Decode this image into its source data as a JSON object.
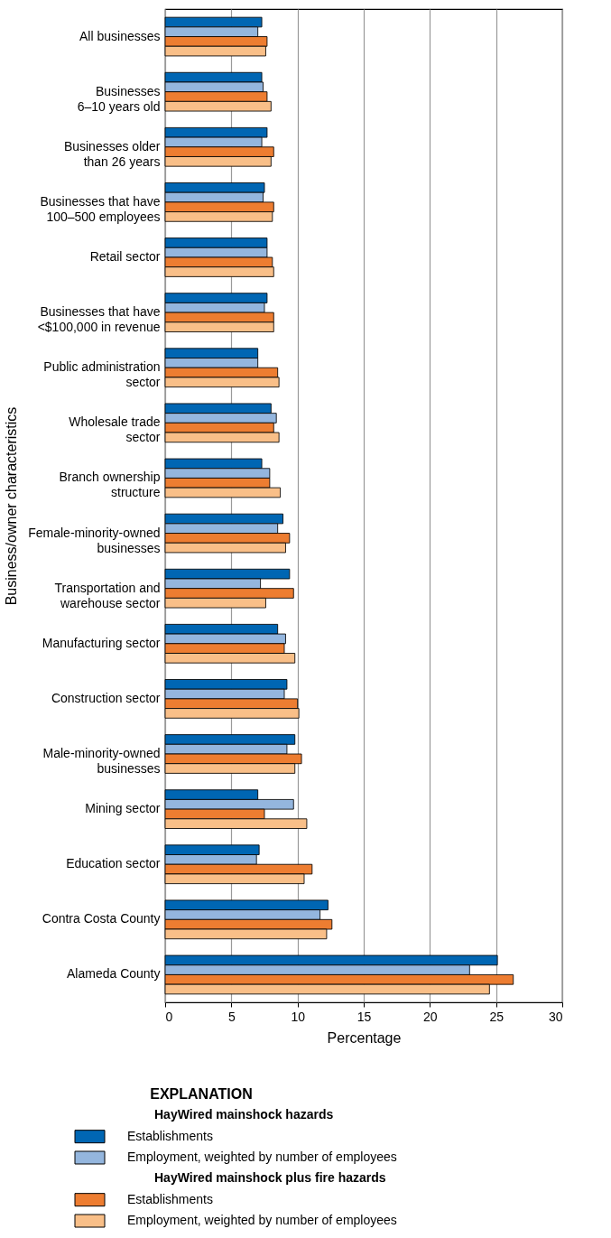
{
  "chart_data": {
    "type": "bar",
    "orientation": "horizontal",
    "ylabel": "Business/owner characteristics",
    "xlabel": "Percentage",
    "legend_title": "EXPLANATION",
    "annotations": [
      "HayWired mainshock hazards",
      "HayWired mainshock plus fire hazards"
    ],
    "categories": [
      "All businesses",
      "Businesses\n6–10 years old",
      "Businesses older\nthan 26 years",
      "Businesses that have\n100–500 employees",
      "Retail sector",
      "Businesses that have\n<$100,000 in revenue",
      "Public administration\nsector",
      "Wholesale trade\nsector",
      "Branch ownership\nstructure",
      "Female-minority-owned\nbusinesses",
      "Transportation and\nwarehouse sector",
      "Manufacturing sector",
      "Construction sector",
      "Male-minority-owned\nbusinesses",
      "Mining sector",
      "Education sector",
      "Contra Costa County",
      "Alameda County"
    ],
    "series": [
      {
        "name": "Establishments",
        "color": "#0066b3",
        "values": [
          7.3,
          7.3,
          7.7,
          7.5,
          7.7,
          7.7,
          7.0,
          8.0,
          7.3,
          8.9,
          9.4,
          8.5,
          9.2,
          9.8,
          7.0,
          7.1,
          12.3,
          25.1
        ]
      },
      {
        "name": "Employment, weighted by number of employees",
        "color": "#94b6de",
        "values": [
          7.0,
          7.4,
          7.3,
          7.4,
          7.7,
          7.5,
          7.0,
          8.4,
          7.9,
          8.5,
          7.2,
          9.1,
          9.0,
          9.2,
          9.7,
          6.9,
          11.7,
          23.0
        ]
      },
      {
        "name": "Establishments",
        "color": "#ed7d31",
        "values": [
          7.7,
          7.7,
          8.2,
          8.2,
          8.1,
          8.2,
          8.5,
          8.2,
          7.9,
          9.4,
          9.7,
          9.0,
          10.0,
          10.3,
          7.5,
          11.1,
          12.6,
          26.3
        ]
      },
      {
        "name": "Employment, weighted by number of employees",
        "color": "#f9bf88",
        "values": [
          7.6,
          8.0,
          8.0,
          8.1,
          8.2,
          8.2,
          8.6,
          8.6,
          8.7,
          9.1,
          7.6,
          9.8,
          10.1,
          9.8,
          10.7,
          10.5,
          12.2,
          24.5
        ]
      }
    ],
    "xlim": [
      0,
      30
    ],
    "xticks": [
      0,
      5,
      10,
      15,
      20,
      25,
      30
    ],
    "grid": "x",
    "legend": "bottom"
  }
}
